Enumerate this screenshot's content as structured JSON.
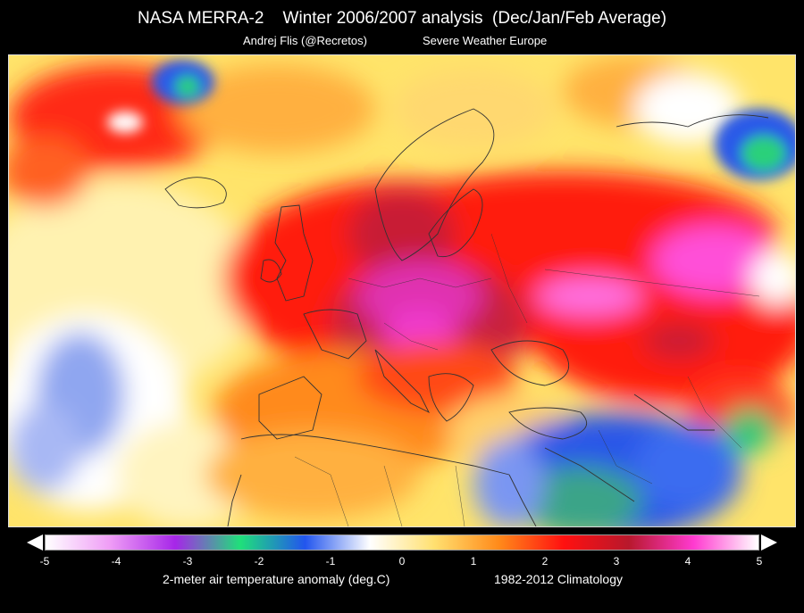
{
  "header": {
    "title": "NASA MERRA-2    Winter 2006/2007 analysis  (Dec/Jan/Feb Average)",
    "author": "Andrej Flis (@Recretos)",
    "org": "Severe Weather Europe"
  },
  "legend": {
    "ticks": [
      "-5",
      "-4",
      "-3",
      "-2",
      "-1",
      "0",
      "1",
      "2",
      "3",
      "4",
      "5"
    ],
    "range": [
      -5,
      5
    ],
    "label": "2-meter air temperature anomaly (deg.C)",
    "climatology": "1982-2012 Climatology",
    "colors": [
      "#ffffff",
      "#ef9cf6",
      "#a626e8",
      "#1fe07a",
      "#2255ee",
      "#ffffff",
      "#ffe070",
      "#ff8a1a",
      "#ff1010",
      "#b8182c",
      "#ff3ad0",
      "#ffffff"
    ]
  }
}
